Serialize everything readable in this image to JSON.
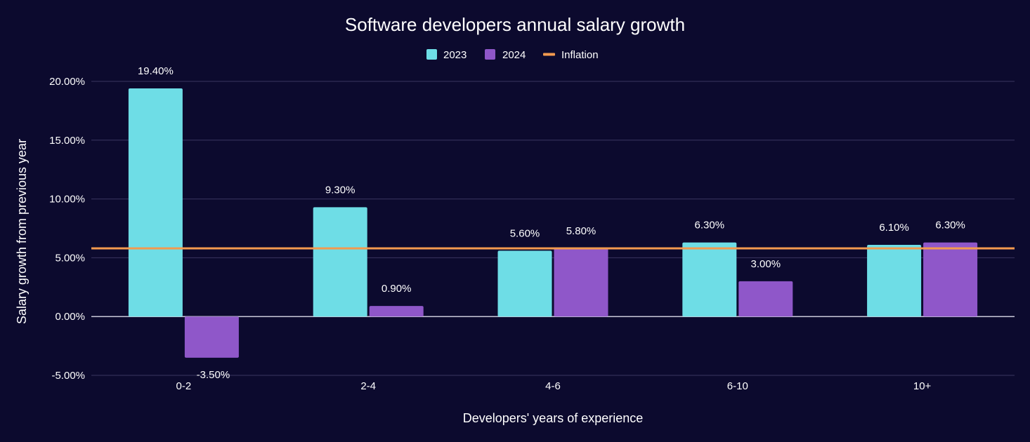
{
  "chart_data": {
    "type": "bar",
    "title": "Software developers annual salary growth",
    "xlabel": "Developers' years of experience",
    "ylabel": "Salary growth from previous year",
    "categories": [
      "0-2",
      "2-4",
      "4-6",
      "6-10",
      "10+"
    ],
    "series": [
      {
        "name": "2023",
        "color": "#6edde6",
        "values": [
          19.4,
          9.3,
          5.6,
          6.3,
          6.1
        ],
        "labels": [
          "19.40%",
          "9.30%",
          "5.60%",
          "6.30%",
          "6.10%"
        ]
      },
      {
        "name": "2024",
        "color": "#8f57c9",
        "values": [
          -3.5,
          0.9,
          5.8,
          3.0,
          6.3
        ],
        "labels": [
          "-3.50%",
          "0.90%",
          "5.80%",
          "3.00%",
          "6.30%"
        ]
      }
    ],
    "reference_line": {
      "name": "Inflation",
      "color": "#f39a4f",
      "value": 5.8
    },
    "ylim": [
      -5,
      20
    ],
    "yticks": [
      {
        "value": 20,
        "label": "20.00%"
      },
      {
        "value": 15,
        "label": "15.00%"
      },
      {
        "value": 10,
        "label": "10.00%"
      },
      {
        "value": 5,
        "label": "5.00%"
      },
      {
        "value": 0,
        "label": "0.00%"
      },
      {
        "value": -5,
        "label": "-5.00%"
      }
    ],
    "legend": {
      "position": "top-center",
      "items": [
        {
          "name": "2023",
          "color": "#6edde6",
          "shape": "square"
        },
        {
          "name": "2024",
          "color": "#8f57c9",
          "shape": "square"
        },
        {
          "name": "Inflation",
          "color": "#f39a4f",
          "shape": "line"
        }
      ]
    },
    "grid": true,
    "background": "#0c0a2e",
    "gridline_color": "#3a3660",
    "zero_line_color": "#c8c8d8"
  }
}
